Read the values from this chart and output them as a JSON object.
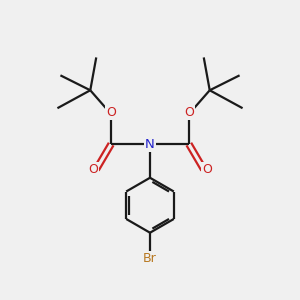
{
  "background_color": "#f0f0f0",
  "bond_color": "#1a1a1a",
  "N_color": "#2222cc",
  "O_color": "#cc2222",
  "Br_color": "#b87820",
  "figsize": [
    3.0,
    3.0
  ],
  "dpi": 100,
  "xlim": [
    0,
    10
  ],
  "ylim": [
    0,
    10
  ]
}
